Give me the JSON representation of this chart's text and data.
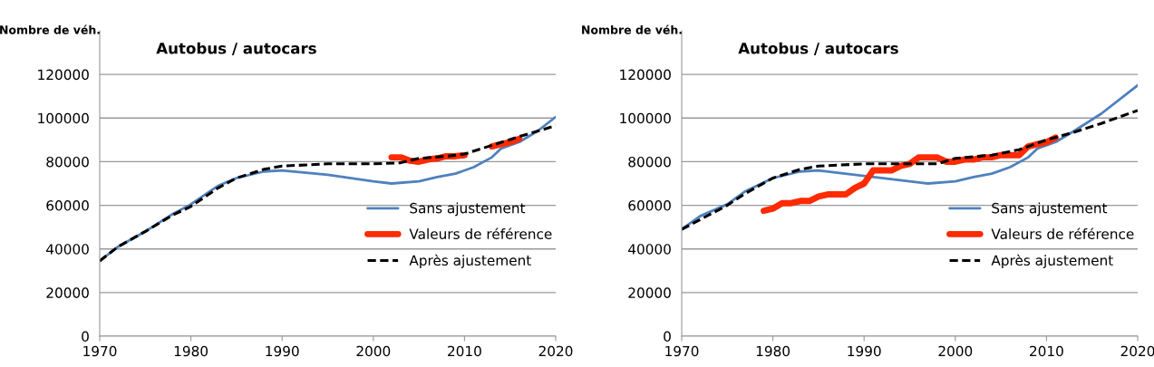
{
  "chart_data": [
    {
      "type": "line",
      "title": "Autobus / autocars",
      "ylabel": "Nombre de véh.",
      "xlim": [
        1970,
        2020
      ],
      "xticks": [
        1970,
        1980,
        1990,
        2000,
        2010,
        2020
      ],
      "ylim": [
        0,
        140000
      ],
      "yticks": [
        0,
        20000,
        40000,
        60000,
        80000,
        100000,
        120000
      ],
      "grid": "y",
      "legend": "right",
      "series": [
        {
          "name": "Sans ajustement",
          "color": "#4f81bd",
          "x": [
            1970,
            1972,
            1975,
            1978,
            1980,
            1983,
            1985,
            1988,
            1990,
            1995,
            2000,
            2002,
            2005,
            2007,
            2009,
            2011,
            2013,
            2014,
            2016,
            2018,
            2020
          ],
          "values": [
            34500,
            41000,
            48000,
            56000,
            60500,
            69000,
            72500,
            75500,
            76000,
            74000,
            71000,
            70000,
            71000,
            73000,
            74500,
            77500,
            82000,
            86000,
            89000,
            94000,
            100500
          ]
        },
        {
          "name": "Valeurs de référence",
          "color": "#ff2a00",
          "x": [
            2002,
            2003,
            2004,
            2005,
            2006,
            2007,
            2008,
            2009,
            2010,
            2011,
            2012,
            2013,
            2014,
            2015,
            2016
          ],
          "values": [
            82000,
            82000,
            80500,
            80000,
            81000,
            81500,
            82500,
            82500,
            83000,
            null,
            null,
            87000,
            88000,
            89000,
            90500
          ]
        },
        {
          "name": "Après ajustement",
          "color": "#000000",
          "line_style": "dashed",
          "x": [
            1970,
            1972,
            1975,
            1978,
            1980,
            1983,
            1985,
            1988,
            1990,
            1995,
            2000,
            2003,
            2005,
            2008,
            2010,
            2013,
            2016,
            2020
          ],
          "values": [
            34500,
            41000,
            48000,
            55500,
            59500,
            68000,
            72500,
            76500,
            78000,
            79000,
            79000,
            79500,
            81500,
            82500,
            83500,
            87500,
            91500,
            96500
          ]
        }
      ]
    },
    {
      "type": "line",
      "title": "Autobus / autocars",
      "ylabel": "Nombre de véh.",
      "xlim": [
        1970,
        2020
      ],
      "xticks": [
        1970,
        1980,
        1990,
        2000,
        2010,
        2020
      ],
      "ylim": [
        0,
        140000
      ],
      "yticks": [
        0,
        20000,
        40000,
        60000,
        80000,
        100000,
        120000
      ],
      "grid": "y",
      "legend": "right",
      "series": [
        {
          "name": "Sans ajustement",
          "color": "#4f81bd",
          "x": [
            1970,
            1972,
            1975,
            1977,
            1980,
            1983,
            1985,
            1990,
            1995,
            1997,
            2000,
            2002,
            2004,
            2006,
            2008,
            2009,
            2011,
            2013,
            2016,
            2020
          ],
          "values": [
            49000,
            55000,
            60500,
            66500,
            72500,
            75500,
            76000,
            73500,
            71000,
            70000,
            71000,
            73000,
            74500,
            77500,
            82000,
            86000,
            89000,
            94000,
            102000,
            115000
          ]
        },
        {
          "name": "Valeurs de référence",
          "color": "#ff2a00",
          "x": [
            1979,
            1980,
            1981,
            1982,
            1983,
            1984,
            1985,
            1986,
            1987,
            1988,
            1989,
            1990,
            1991,
            1992,
            1993,
            1994,
            1995,
            1996,
            1997,
            1998,
            1999,
            2000,
            2001,
            2002,
            2003,
            2004,
            2005,
            2006,
            2007,
            2008,
            2009,
            2010,
            2011
          ],
          "values": [
            57500,
            58500,
            61000,
            61000,
            62000,
            62000,
            64000,
            65000,
            65000,
            65000,
            68000,
            70000,
            76000,
            76000,
            76000,
            78000,
            79000,
            82000,
            82000,
            82000,
            80000,
            80000,
            81000,
            81000,
            82000,
            82000,
            83000,
            83000,
            83000,
            87000,
            88000,
            89000,
            91000
          ]
        },
        {
          "name": "Après ajustement",
          "color": "#000000",
          "line_style": "dashed",
          "x": [
            1970,
            1975,
            1977,
            1980,
            1983,
            1985,
            1990,
            1995,
            1998,
            2000,
            2004,
            2007,
            2010,
            2013,
            2016,
            2020
          ],
          "values": [
            49000,
            60000,
            65500,
            72500,
            76500,
            78000,
            79000,
            79000,
            79000,
            81500,
            83000,
            85500,
            90000,
            93500,
            97500,
            103500
          ]
        }
      ]
    }
  ]
}
